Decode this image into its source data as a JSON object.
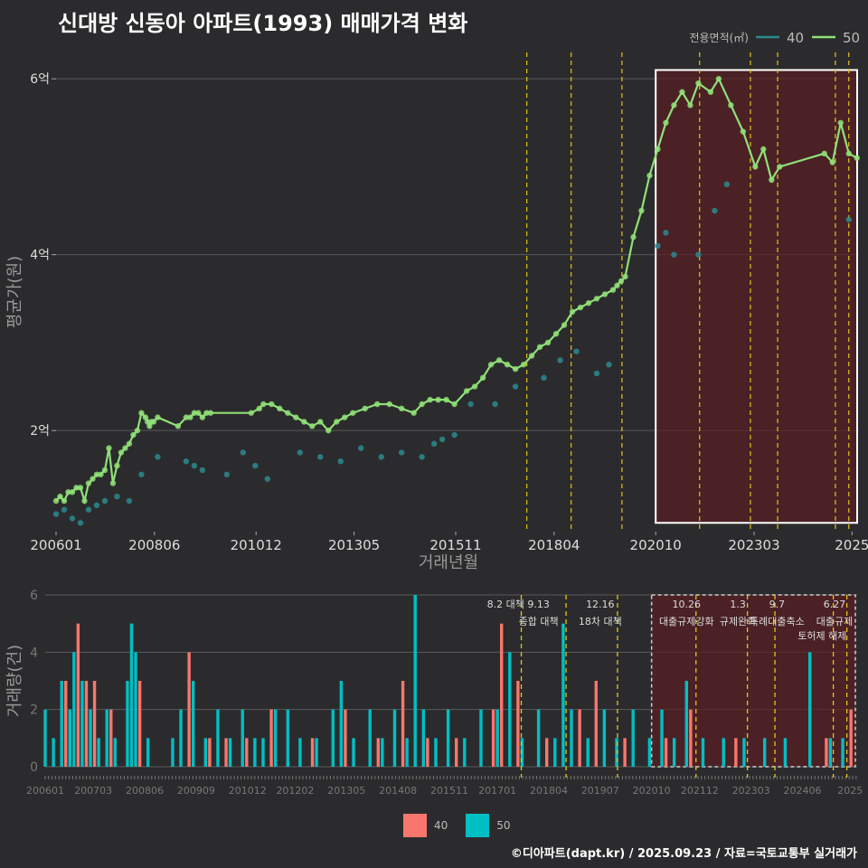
{
  "title": "신대방 신동아 아파트(1993) 매매가격 변화",
  "credit": "©디아파트(dapt.kr) / 2025.09.23 / 자료=국토교통부 실거래가",
  "colors": {
    "s40_top": "#2c8a8f",
    "s50_top": "#90e078",
    "bar40": "#f8766d",
    "bar50": "#00bfc4",
    "vline": "#e6c417",
    "box_fill": "#5a1e22",
    "bg": "#2b2b2d"
  },
  "chart_data": [
    {
      "type": "line",
      "title": "신대방 신동아 아파트(1993) 매매가격 변화",
      "xlabel": "거래년월",
      "ylabel": "평균가(원)",
      "xlim": [
        2006.0,
        2025.75
      ],
      "ylim": [
        0.85,
        6.3
      ],
      "y_ticks": [
        {
          "v": 2,
          "label": "2억"
        },
        {
          "v": 4,
          "label": "4억"
        },
        {
          "v": 6,
          "label": "6억"
        }
      ],
      "x_ticks": [
        {
          "v": 2006.0,
          "label": "200601"
        },
        {
          "v": 2008.42,
          "label": "200806"
        },
        {
          "v": 2010.92,
          "label": "201012"
        },
        {
          "v": 2013.33,
          "label": "201305"
        },
        {
          "v": 2015.83,
          "label": "201511"
        },
        {
          "v": 2018.25,
          "label": "201804"
        },
        {
          "v": 2020.75,
          "label": "202010"
        },
        {
          "v": 2023.17,
          "label": "202303"
        },
        {
          "v": 2025.58,
          "label": "2025"
        }
      ],
      "legend": {
        "title": "전용면적(㎡)",
        "placement": "top-right",
        "entries": [
          "40",
          "50"
        ]
      },
      "highlight_box": {
        "x0": 2020.75,
        "x1": 2025.75,
        "y0": 0.95,
        "y1": 6.1
      },
      "vlines": [
        2017.58,
        2018.67,
        2019.92,
        2021.83,
        2023.08,
        2023.75,
        2025.17,
        2025.5
      ],
      "series": [
        {
          "name": "50",
          "x": [
            2006.0,
            2006.1,
            2006.2,
            2006.3,
            2006.4,
            2006.5,
            2006.6,
            2006.7,
            2006.8,
            2006.9,
            2007.0,
            2007.1,
            2007.2,
            2007.3,
            2007.4,
            2007.5,
            2007.6,
            2007.7,
            2007.8,
            2007.9,
            2008.0,
            2008.1,
            2008.2,
            2008.25,
            2008.3,
            2008.35,
            2008.4,
            2008.5,
            2009.0,
            2009.2,
            2009.3,
            2009.4,
            2009.5,
            2009.6,
            2009.7,
            2009.8,
            2010.8,
            2011.0,
            2011.1,
            2011.3,
            2011.5,
            2011.7,
            2011.9,
            2012.1,
            2012.3,
            2012.5,
            2012.7,
            2012.9,
            2013.1,
            2013.3,
            2013.6,
            2013.9,
            2014.2,
            2014.5,
            2014.8,
            2015.0,
            2015.2,
            2015.4,
            2015.6,
            2015.8,
            2016.1,
            2016.3,
            2016.5,
            2016.7,
            2016.9,
            2017.1,
            2017.3,
            2017.5,
            2017.7,
            2017.9,
            2018.1,
            2018.3,
            2018.5,
            2018.7,
            2018.9,
            2019.1,
            2019.3,
            2019.5,
            2019.7,
            2019.8,
            2019.9,
            2020.0,
            2020.2,
            2020.4,
            2020.6,
            2020.8,
            2021.0,
            2021.2,
            2021.4,
            2021.6,
            2021.8,
            2022.1,
            2022.3,
            2022.6,
            2022.9,
            2023.2,
            2023.4,
            2023.6,
            2023.8,
            2024.9,
            2025.1,
            2025.3,
            2025.5,
            2025.7
          ],
          "y": [
            1.2,
            1.25,
            1.2,
            1.3,
            1.3,
            1.35,
            1.35,
            1.2,
            1.4,
            1.45,
            1.5,
            1.5,
            1.55,
            1.8,
            1.4,
            1.6,
            1.75,
            1.8,
            1.85,
            1.95,
            2.0,
            2.2,
            2.15,
            2.1,
            2.05,
            2.1,
            2.1,
            2.15,
            2.05,
            2.15,
            2.15,
            2.2,
            2.2,
            2.15,
            2.2,
            2.2,
            2.2,
            2.25,
            2.3,
            2.3,
            2.25,
            2.2,
            2.15,
            2.1,
            2.05,
            2.1,
            2.0,
            2.1,
            2.15,
            2.2,
            2.25,
            2.3,
            2.3,
            2.25,
            2.2,
            2.3,
            2.35,
            2.35,
            2.35,
            2.3,
            2.45,
            2.5,
            2.6,
            2.75,
            2.8,
            2.75,
            2.7,
            2.75,
            2.85,
            2.95,
            3.0,
            3.1,
            3.2,
            3.35,
            3.4,
            3.45,
            3.5,
            3.55,
            3.6,
            3.65,
            3.7,
            3.75,
            4.2,
            4.5,
            4.9,
            5.2,
            5.5,
            5.7,
            5.85,
            5.7,
            5.95,
            5.85,
            6.0,
            5.7,
            5.4,
            5.0,
            5.2,
            4.85,
            5.0,
            5.15,
            5.05,
            5.5,
            5.15,
            5.1
          ]
        },
        {
          "name": "40",
          "x": [
            2006.0,
            2006.2,
            2006.4,
            2006.6,
            2006.8,
            2007.0,
            2007.2,
            2007.5,
            2007.8,
            2008.1,
            2008.5,
            2009.2,
            2009.4,
            2009.6,
            2010.2,
            2010.6,
            2010.9,
            2011.2,
            2012.0,
            2012.5,
            2013.0,
            2013.5,
            2014.0,
            2014.5,
            2015.0,
            2015.3,
            2015.5,
            2015.8,
            2016.2,
            2016.8,
            2017.3,
            2018.0,
            2018.4,
            2018.8,
            2019.3,
            2019.6,
            2020.8,
            2021.0,
            2021.2,
            2021.8,
            2022.2,
            2022.5,
            2025.5
          ],
          "y": [
            1.05,
            1.1,
            1.0,
            0.95,
            1.1,
            1.15,
            1.2,
            1.25,
            1.2,
            1.5,
            1.7,
            1.65,
            1.6,
            1.55,
            1.5,
            1.75,
            1.6,
            1.45,
            1.75,
            1.7,
            1.65,
            1.8,
            1.7,
            1.75,
            1.7,
            1.85,
            1.9,
            1.95,
            2.3,
            2.3,
            2.5,
            2.6,
            2.8,
            2.9,
            2.65,
            2.75,
            4.1,
            4.25,
            4.0,
            4.0,
            4.5,
            4.8,
            4.4
          ]
        }
      ]
    },
    {
      "type": "bar",
      "xlabel": "",
      "ylabel": "거래량(건)",
      "xlim": [
        2006.0,
        2025.75
      ],
      "ylim": [
        0,
        6
      ],
      "y_ticks": [
        0,
        2,
        4,
        6
      ],
      "x_ticks": [
        {
          "v": 2006.0,
          "label": "200601"
        },
        {
          "v": 2007.17,
          "label": "200703"
        },
        {
          "v": 2008.42,
          "label": "200806"
        },
        {
          "v": 2009.67,
          "label": "200909"
        },
        {
          "v": 2010.92,
          "label": "201012"
        },
        {
          "v": 2012.08,
          "label": "201202"
        },
        {
          "v": 2013.33,
          "label": "201305"
        },
        {
          "v": 2014.58,
          "label": "201408"
        },
        {
          "v": 2015.83,
          "label": "201511"
        },
        {
          "v": 2017.0,
          "label": "201701"
        },
        {
          "v": 2018.25,
          "label": "201804"
        },
        {
          "v": 2019.5,
          "label": "201907"
        },
        {
          "v": 2020.75,
          "label": "202010"
        },
        {
          "v": 2021.92,
          "label": "202112"
        },
        {
          "v": 2023.17,
          "label": "202303"
        },
        {
          "v": 2024.42,
          "label": "202406"
        },
        {
          "v": 2025.58,
          "label": "2025"
        }
      ],
      "highlight_box": {
        "x0": 2020.75,
        "x1": 2025.75
      },
      "vlines": [
        2017.58,
        2018.67,
        2019.92,
        2021.83,
        2023.08,
        2023.75,
        2025.17,
        2025.5
      ],
      "annotations": [
        {
          "x": 2017.2,
          "line1": "8.2 대책",
          "line2": ""
        },
        {
          "x": 2018.0,
          "line1": "9.13",
          "line2": "종합 대책"
        },
        {
          "x": 2019.5,
          "line1": "12.16",
          "line2": "18차 대책"
        },
        {
          "x": 2021.6,
          "line1": "10.26",
          "line2": "대출규제강화"
        },
        {
          "x": 2022.85,
          "line1": "1.3",
          "line2": "규제완화"
        },
        {
          "x": 2023.8,
          "line1": "9.7",
          "line2": "특례대출축소"
        },
        {
          "x": 2025.2,
          "line1": "6.27",
          "line2": "대출규제"
        }
      ],
      "annotation_extra": {
        "x": 2024.9,
        "text": "토허제 해제"
      },
      "series": [
        {
          "name": "50",
          "x": [
            2006.0,
            2006.2,
            2006.4,
            2006.6,
            2006.7,
            2006.9,
            2007.1,
            2007.3,
            2007.5,
            2007.7,
            2008.0,
            2008.1,
            2008.2,
            2008.5,
            2009.1,
            2009.3,
            2009.6,
            2009.9,
            2010.2,
            2010.5,
            2010.8,
            2011.1,
            2011.3,
            2011.6,
            2011.9,
            2012.2,
            2012.6,
            2013.0,
            2013.2,
            2013.5,
            2013.9,
            2014.2,
            2014.5,
            2014.8,
            2015.0,
            2015.2,
            2015.5,
            2015.8,
            2016.2,
            2016.6,
            2017.0,
            2017.3,
            2017.6,
            2018.0,
            2018.4,
            2018.6,
            2018.8,
            2019.2,
            2019.6,
            2019.9,
            2020.3,
            2020.7,
            2021.0,
            2021.3,
            2021.6,
            2022.0,
            2022.5,
            2023.0,
            2023.5,
            2024.0,
            2024.6,
            2025.1,
            2025.4
          ],
          "v": [
            2,
            1,
            3,
            2,
            4,
            3,
            2,
            1,
            2,
            1,
            3,
            5,
            4,
            1,
            1,
            2,
            3,
            1,
            2,
            1,
            2,
            1,
            1,
            2,
            2,
            1,
            1,
            2,
            3,
            1,
            2,
            1,
            2,
            1,
            6,
            2,
            1,
            2,
            1,
            2,
            2,
            4,
            1,
            2,
            1,
            5,
            2,
            1,
            2,
            1,
            2,
            1,
            2,
            1,
            3,
            1,
            1,
            1,
            1,
            1,
            4,
            1,
            1
          ]
        },
        {
          "name": "40",
          "x": [
            2006.5,
            2006.8,
            2007.0,
            2007.2,
            2007.6,
            2008.3,
            2009.5,
            2010.0,
            2010.4,
            2010.9,
            2011.5,
            2012.5,
            2013.3,
            2014.1,
            2014.7,
            2015.3,
            2016.0,
            2016.9,
            2017.1,
            2017.5,
            2018.2,
            2019.0,
            2019.4,
            2020.1,
            2021.1,
            2021.7,
            2022.8,
            2025.0,
            2025.6
          ],
          "v": [
            3,
            5,
            3,
            3,
            2,
            3,
            4,
            1,
            1,
            1,
            2,
            1,
            2,
            1,
            3,
            1,
            1,
            2,
            5,
            3,
            1,
            2,
            3,
            1,
            1,
            2,
            1,
            1,
            2
          ]
        }
      ]
    }
  ]
}
